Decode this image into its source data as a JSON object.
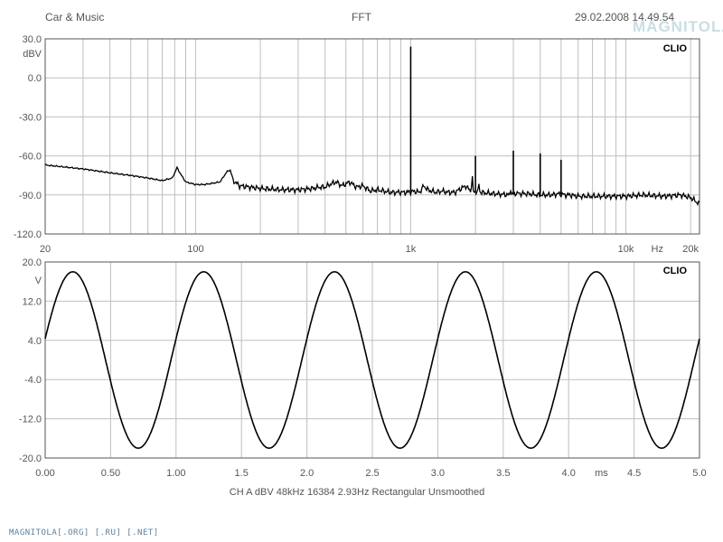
{
  "header": {
    "left": "Car & Music",
    "center": "FFT",
    "right": "29.02.2008 14.49.54",
    "watermark": "MAGNITOLA"
  },
  "footer": "MAGNITOLA[.ORG] [.RU] [.NET]",
  "chart_data": [
    {
      "type": "line",
      "brand_label": "CLIO",
      "ylabel": "dBV",
      "xlabel": "Hz",
      "xscale": "log",
      "xlim": [
        20,
        22000
      ],
      "ylim": [
        -120,
        30
      ],
      "yticks": [
        30,
        0,
        -30,
        -60,
        -90,
        -120
      ],
      "ytick_labels": [
        "30.0",
        "0.0",
        "-30.0",
        "-60.0",
        "-90.0",
        "-120.0"
      ],
      "xtick_labels": [
        {
          "x": 20,
          "label": "20"
        },
        {
          "x": 100,
          "label": "100"
        },
        {
          "x": 1000,
          "label": "1k"
        },
        {
          "x": 10000,
          "label": "10k"
        },
        {
          "x": 20000,
          "label": "20k"
        }
      ],
      "grid": true,
      "series": [
        {
          "x": [
            20,
            30,
            40,
            50,
            60,
            70,
            78,
            82,
            86,
            90,
            100,
            110,
            120,
            130,
            140,
            145,
            150,
            160,
            200,
            250,
            300,
            350,
            380,
            400,
            420,
            450,
            480,
            520,
            560,
            600,
            650,
            700,
            800,
            900,
            980,
            1000,
            1020,
            1100,
            1150,
            1200,
            1300,
            1400,
            1500,
            1600,
            1800,
            1900,
            2000,
            2100,
            2400,
            2900,
            3000,
            3100,
            3500,
            3900,
            4000,
            4100,
            4500,
            4900,
            5000,
            5100,
            5500,
            6000,
            7000,
            8000,
            10000,
            12000,
            15000,
            18000,
            20000,
            22000
          ],
          "y": [
            -67,
            -70,
            -73,
            -75,
            -77,
            -79,
            -77,
            -69,
            -75,
            -80,
            -82,
            -82,
            -81,
            -80,
            -72,
            -71,
            -79,
            -83,
            -85,
            -86,
            -86,
            -85,
            -84,
            -84,
            -82,
            -80,
            -83,
            -80,
            -84,
            -83,
            -87,
            -86,
            -88,
            -88,
            -88,
            24,
            -87,
            -88,
            -83,
            -86,
            -88,
            -87,
            -88,
            -88,
            -83,
            -87,
            -60,
            -88,
            -89,
            -90,
            -56,
            -89,
            -89,
            -90,
            -58,
            -90,
            -90,
            -89,
            -63,
            -90,
            -90,
            -91,
            -91,
            -91,
            -91,
            -90,
            -91,
            -90,
            -92,
            -97
          ]
        }
      ]
    },
    {
      "type": "line",
      "brand_label": "CLIO",
      "ylabel": "V",
      "xlabel": "ms",
      "xlim": [
        0,
        5
      ],
      "ylim": [
        -20,
        20
      ],
      "yticks": [
        20,
        12,
        4,
        -4,
        -12,
        -20
      ],
      "ytick_labels": [
        "20.0",
        "12.0",
        "4.0",
        "-4.0",
        "-12.0",
        "-20.0"
      ],
      "xticks": [
        0,
        0.5,
        1,
        1.5,
        2,
        2.5,
        3,
        3.5,
        4,
        4.5,
        5
      ],
      "xtick_labels": [
        "0.00",
        "0.50",
        "1.00",
        "1.5",
        "2.0",
        "2.5",
        "3.0",
        "3.5",
        "4.0",
        "4.5",
        "5.0"
      ],
      "grid": true,
      "signal": {
        "shape": "sine",
        "frequency_hz": 1000,
        "amplitude_v": 18,
        "offset_v": 0,
        "phase_deg": 14
      },
      "status_line": [
        "CH A",
        "dBV",
        "48kHz",
        "16384",
        "2.93Hz",
        "Rectangular",
        "Unsmoothed"
      ]
    }
  ]
}
